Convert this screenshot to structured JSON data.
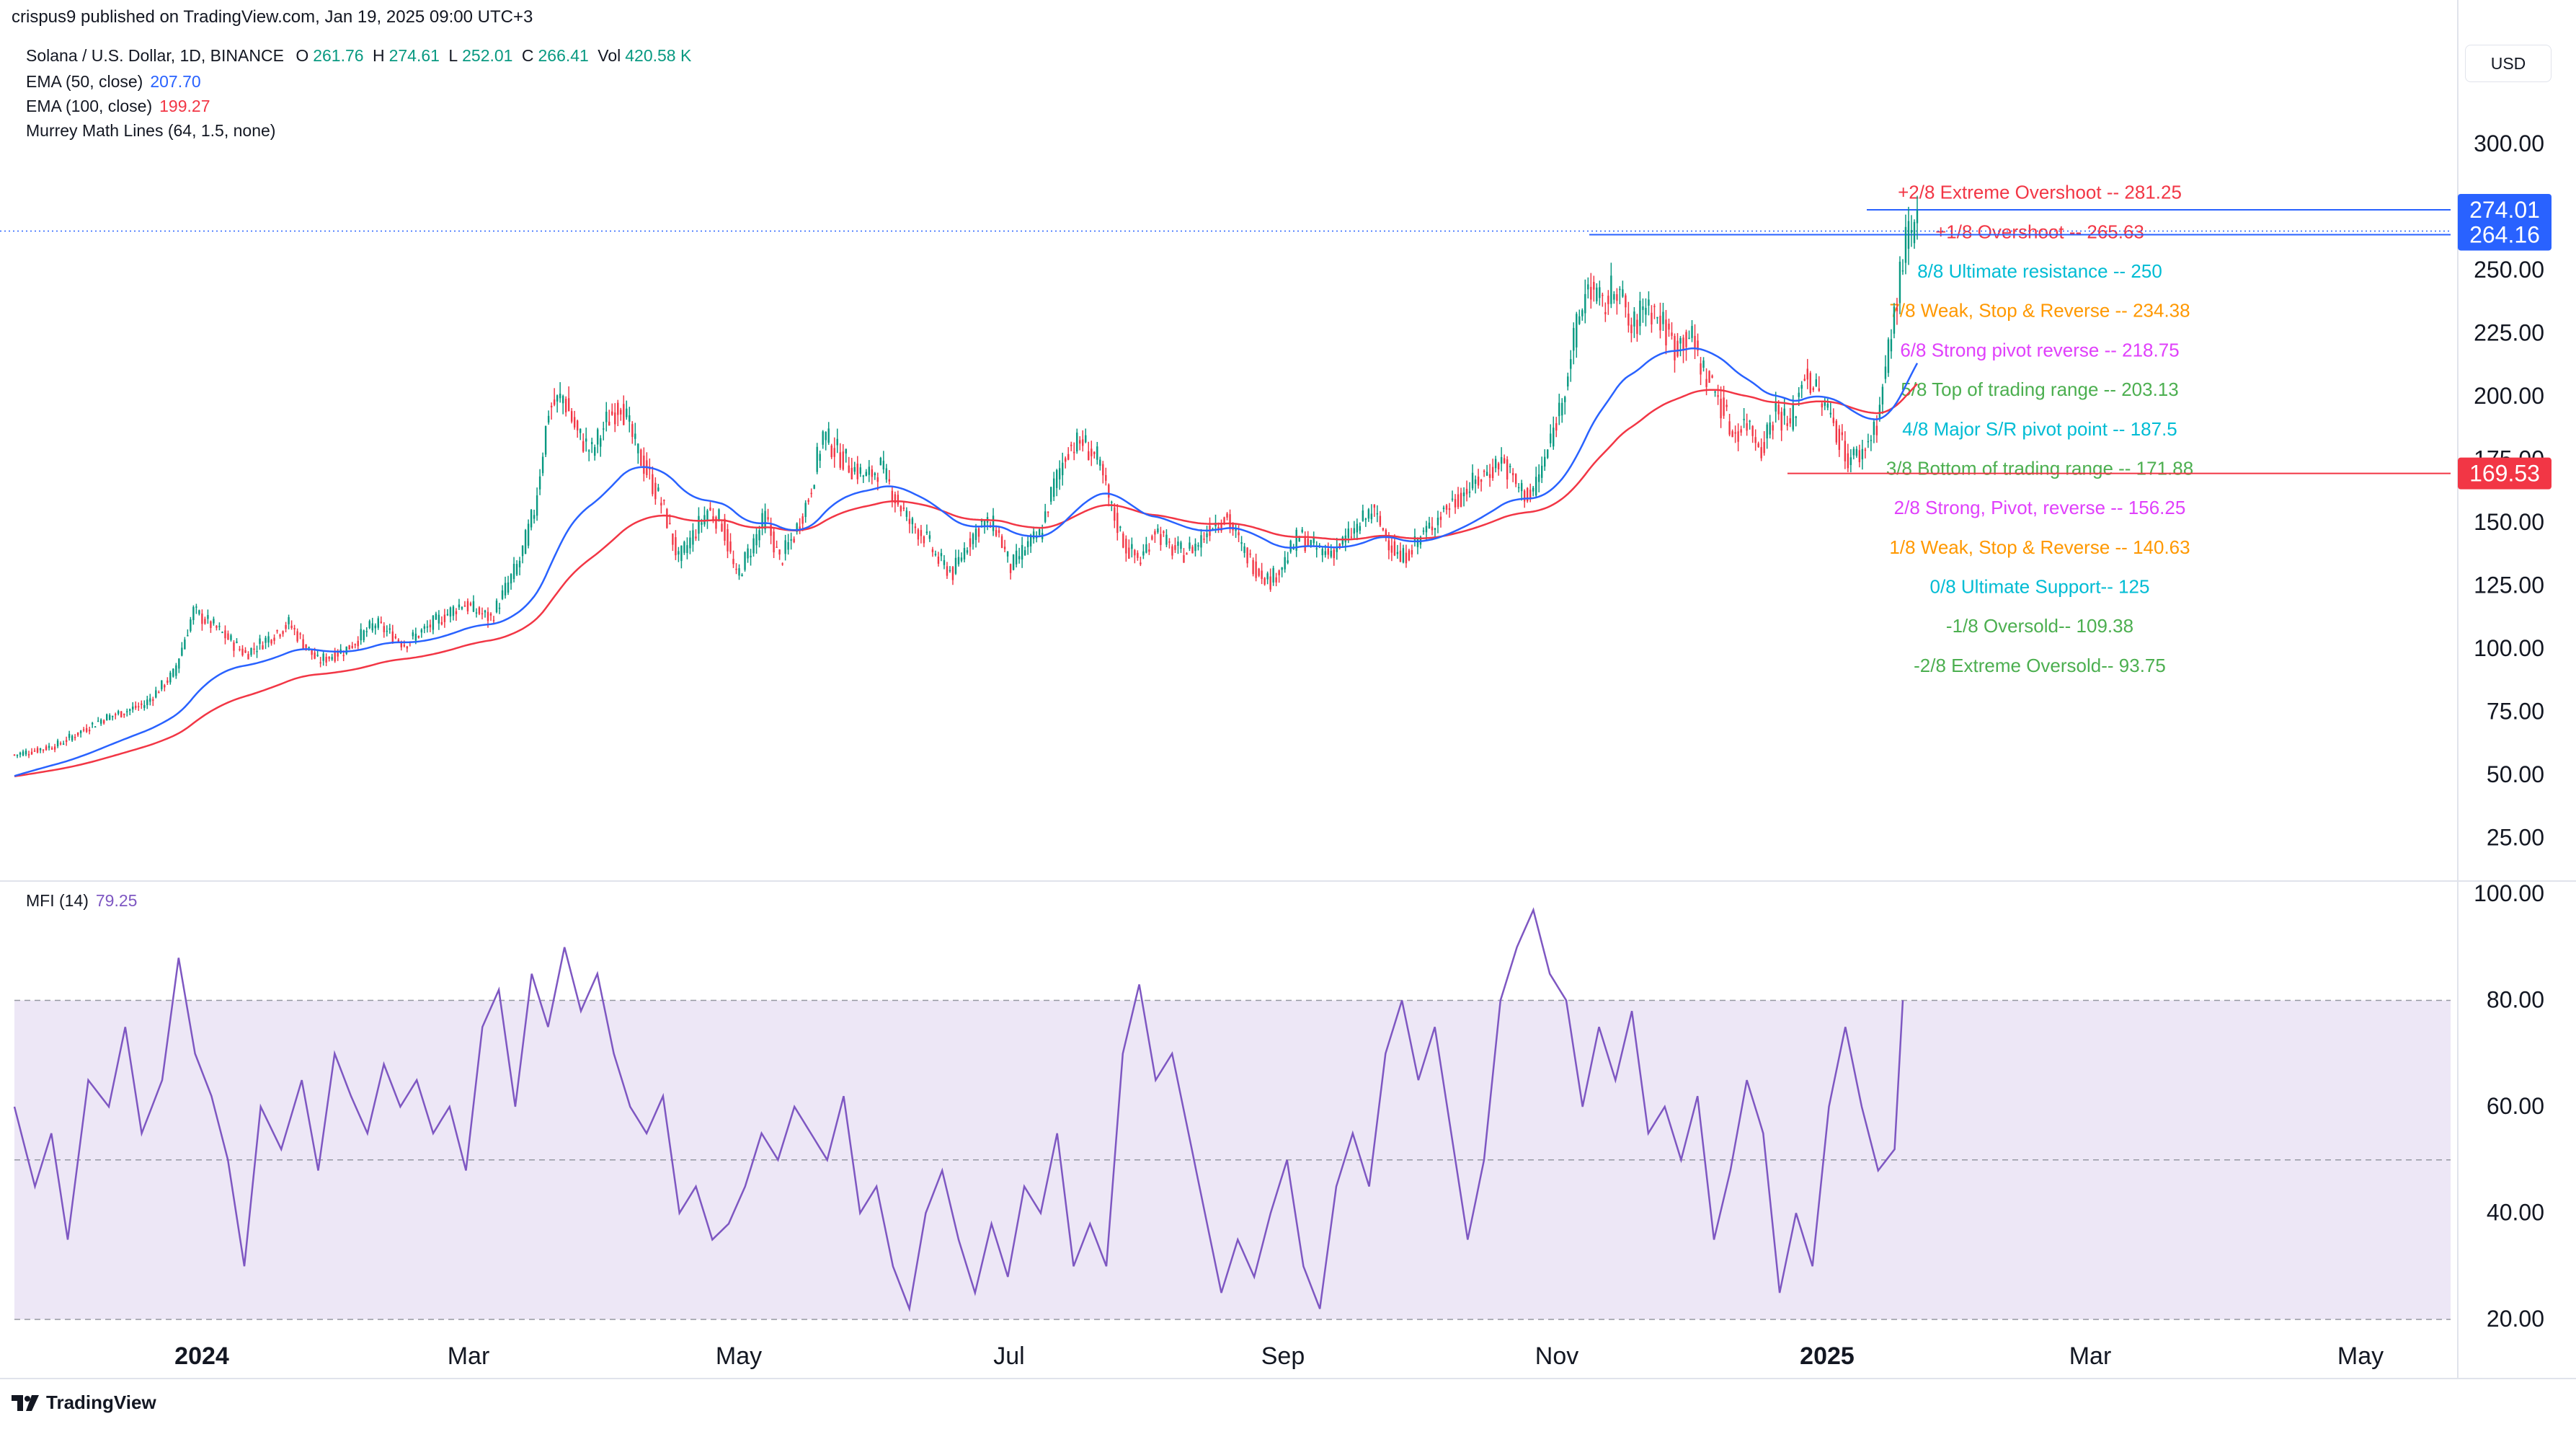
{
  "header": {
    "publisher": "crispus9 published on TradingView.com, Jan 19, 2025 09:00 UTC+3"
  },
  "legend": {
    "symbol": "Solana / U.S. Dollar, 1D, BINANCE",
    "o_label": "O",
    "o": "261.76",
    "h_label": "H",
    "h": "274.61",
    "l_label": "L",
    "l": "252.01",
    "c_label": "C",
    "c": "266.41",
    "vol_label": "Vol",
    "vol": "420.58 K",
    "ema50_label": "EMA (50, close)",
    "ema50": "207.70",
    "ema100_label": "EMA (100, close)",
    "ema100": "199.27",
    "murrey_label": "Murrey Math Lines (64, 1.5, none)",
    "mfi_label": "MFI (14)",
    "mfi": "79.25"
  },
  "currency": "USD",
  "footer": {
    "brand": "TradingView"
  },
  "colors": {
    "up": "#089981",
    "down": "#f23645",
    "ema50": "#2962ff",
    "ema100": "#f23645",
    "mfi": "#7e57c2",
    "mfi_band": "#ede7f6"
  },
  "chart_data": [
    {
      "type": "candlestick",
      "y_ticks": [
        "25.00",
        "50.00",
        "75.00",
        "100.00",
        "125.00",
        "150.00",
        "175.00",
        "200.00",
        "225.00",
        "250.00",
        "300.00"
      ],
      "ylim": [
        10,
        320
      ],
      "x_ticks": [
        "2024",
        "Mar",
        "May",
        "Jul",
        "Sep",
        "Nov",
        "2025",
        "Mar",
        "May"
      ],
      "price_labels": [
        {
          "value": 274.01,
          "text": "274.01"
        },
        {
          "value": 264.16,
          "text": "264.16"
        },
        {
          "value": 169.53,
          "text": "169.53"
        }
      ],
      "murrey_lines": [
        {
          "label": "+2/8 Extreme Overshoot --  281.25",
          "value": 281.25,
          "color": "#f23645"
        },
        {
          "label": "+1/8 Overshoot --  265.63",
          "value": 265.63,
          "color": "#f23645"
        },
        {
          "label": "8/8 Ultimate resistance --  250",
          "value": 250,
          "color": "#00bcd4"
        },
        {
          "label": "7/8 Weak, Stop & Reverse --  234.38",
          "value": 234.38,
          "color": "#ff9800"
        },
        {
          "label": "6/8 Strong pivot reverse --  218.75",
          "value": 218.75,
          "color": "#e040fb"
        },
        {
          "label": "5/8 Top of trading range --  203.13",
          "value": 203.13,
          "color": "#4caf50"
        },
        {
          "label": "4/8 Major S/R pivot point --  187.5",
          "value": 187.5,
          "color": "#00bcd4"
        },
        {
          "label": "3/8 Bottom of trading range --  171.88",
          "value": 171.88,
          "color": "#4caf50"
        },
        {
          "label": "2/8 Strong, Pivot, reverse --  156.25",
          "value": 156.25,
          "color": "#e040fb"
        },
        {
          "label": "1/8 Weak, Stop & Reverse --  140.63",
          "value": 140.63,
          "color": "#ff9800"
        },
        {
          "label": "0/8 Ultimate Support--  125",
          "value": 125,
          "color": "#00bcd4"
        },
        {
          "label": "-1/8 Oversold--  109.38",
          "value": 109.38,
          "color": "#4caf50"
        },
        {
          "label": "-2/8 Extreme Oversold--  93.75",
          "value": 93.75,
          "color": "#4caf50"
        }
      ],
      "series_anchors_close": [
        [
          0,
          58
        ],
        [
          15,
          62
        ],
        [
          30,
          72
        ],
        [
          45,
          78
        ],
        [
          55,
          90
        ],
        [
          62,
          115
        ],
        [
          70,
          108
        ],
        [
          80,
          98
        ],
        [
          95,
          110
        ],
        [
          105,
          95
        ],
        [
          115,
          100
        ],
        [
          125,
          110
        ],
        [
          135,
          102
        ],
        [
          145,
          110
        ],
        [
          155,
          118
        ],
        [
          165,
          112
        ],
        [
          175,
          135
        ],
        [
          180,
          155
        ],
        [
          185,
          195
        ],
        [
          190,
          200
        ],
        [
          195,
          185
        ],
        [
          200,
          178
        ],
        [
          205,
          190
        ],
        [
          210,
          198
        ],
        [
          215,
          180
        ],
        [
          220,
          168
        ],
        [
          225,
          155
        ],
        [
          230,
          135
        ],
        [
          235,
          145
        ],
        [
          240,
          155
        ],
        [
          245,
          150
        ],
        [
          250,
          128
        ],
        [
          255,
          140
        ],
        [
          260,
          152
        ],
        [
          265,
          135
        ],
        [
          270,
          145
        ],
        [
          275,
          160
        ],
        [
          280,
          185
        ],
        [
          285,
          178
        ],
        [
          290,
          172
        ],
        [
          295,
          168
        ],
        [
          300,
          172
        ],
        [
          305,
          160
        ],
        [
          310,
          150
        ],
        [
          315,
          145
        ],
        [
          320,
          135
        ],
        [
          325,
          130
        ],
        [
          330,
          142
        ],
        [
          335,
          150
        ],
        [
          340,
          148
        ],
        [
          345,
          132
        ],
        [
          350,
          140
        ],
        [
          355,
          145
        ],
        [
          360,
          165
        ],
        [
          365,
          180
        ],
        [
          370,
          182
        ],
        [
          375,
          175
        ],
        [
          380,
          155
        ],
        [
          385,
          140
        ],
        [
          390,
          135
        ],
        [
          395,
          148
        ],
        [
          400,
          140
        ],
        [
          405,
          138
        ],
        [
          410,
          142
        ],
        [
          415,
          150
        ],
        [
          420,
          152
        ],
        [
          425,
          140
        ],
        [
          430,
          132
        ],
        [
          435,
          127
        ],
        [
          440,
          135
        ],
        [
          445,
          145
        ],
        [
          450,
          140
        ],
        [
          455,
          138
        ],
        [
          460,
          142
        ],
        [
          465,
          148
        ],
        [
          470,
          155
        ],
        [
          475,
          145
        ],
        [
          480,
          135
        ],
        [
          485,
          142
        ],
        [
          490,
          148
        ],
        [
          495,
          155
        ],
        [
          500,
          160
        ],
        [
          505,
          165
        ],
        [
          510,
          170
        ],
        [
          515,
          175
        ],
        [
          520,
          165
        ],
        [
          525,
          160
        ],
        [
          530,
          175
        ],
        [
          535,
          195
        ],
        [
          540,
          222
        ],
        [
          545,
          245
        ],
        [
          550,
          235
        ],
        [
          555,
          245
        ],
        [
          560,
          225
        ],
        [
          565,
          238
        ],
        [
          570,
          230
        ],
        [
          575,
          220
        ],
        [
          580,
          225
        ],
        [
          585,
          210
        ],
        [
          590,
          200
        ],
        [
          595,
          185
        ],
        [
          600,
          190
        ],
        [
          605,
          180
        ],
        [
          610,
          195
        ],
        [
          615,
          188
        ],
        [
          620,
          210
        ],
        [
          625,
          200
        ],
        [
          630,
          190
        ],
        [
          635,
          175
        ],
        [
          640,
          178
        ],
        [
          645,
          190
        ],
        [
          650,
          225
        ],
        [
          655,
          262
        ],
        [
          659,
          266
        ]
      ]
    },
    {
      "type": "line",
      "name": "MFI (14)",
      "y_ticks": [
        "20.00",
        "40.00",
        "60.00",
        "80.00",
        "100.00"
      ],
      "ylim": [
        20,
        100
      ],
      "bands": [
        20,
        50,
        80
      ],
      "anchors": [
        [
          0,
          60
        ],
        [
          5,
          45
        ],
        [
          9,
          55
        ],
        [
          13,
          35
        ],
        [
          18,
          65
        ],
        [
          23,
          60
        ],
        [
          27,
          75
        ],
        [
          31,
          55
        ],
        [
          36,
          65
        ],
        [
          40,
          88
        ],
        [
          44,
          70
        ],
        [
          48,
          62
        ],
        [
          52,
          50
        ],
        [
          56,
          30
        ],
        [
          60,
          60
        ],
        [
          65,
          52
        ],
        [
          70,
          65
        ],
        [
          74,
          48
        ],
        [
          78,
          70
        ],
        [
          82,
          62
        ],
        [
          86,
          55
        ],
        [
          90,
          68
        ],
        [
          94,
          60
        ],
        [
          98,
          65
        ],
        [
          102,
          55
        ],
        [
          106,
          60
        ],
        [
          110,
          48
        ],
        [
          114,
          75
        ],
        [
          118,
          82
        ],
        [
          122,
          60
        ],
        [
          126,
          85
        ],
        [
          130,
          75
        ],
        [
          134,
          90
        ],
        [
          138,
          78
        ],
        [
          142,
          85
        ],
        [
          146,
          70
        ],
        [
          150,
          60
        ],
        [
          154,
          55
        ],
        [
          158,
          62
        ],
        [
          162,
          40
        ],
        [
          166,
          45
        ],
        [
          170,
          35
        ],
        [
          174,
          38
        ],
        [
          178,
          45
        ],
        [
          182,
          55
        ],
        [
          186,
          50
        ],
        [
          190,
          60
        ],
        [
          194,
          55
        ],
        [
          198,
          50
        ],
        [
          202,
          62
        ],
        [
          206,
          40
        ],
        [
          210,
          45
        ],
        [
          214,
          30
        ],
        [
          218,
          22
        ],
        [
          222,
          40
        ],
        [
          226,
          48
        ],
        [
          230,
          35
        ],
        [
          234,
          25
        ],
        [
          238,
          38
        ],
        [
          242,
          28
        ],
        [
          246,
          45
        ],
        [
          250,
          40
        ],
        [
          254,
          55
        ],
        [
          258,
          30
        ],
        [
          262,
          38
        ],
        [
          266,
          30
        ],
        [
          270,
          70
        ],
        [
          274,
          83
        ],
        [
          278,
          65
        ],
        [
          282,
          70
        ],
        [
          286,
          55
        ],
        [
          290,
          40
        ],
        [
          294,
          25
        ],
        [
          298,
          35
        ],
        [
          302,
          28
        ],
        [
          306,
          40
        ],
        [
          310,
          50
        ],
        [
          314,
          30
        ],
        [
          318,
          22
        ],
        [
          322,
          45
        ],
        [
          326,
          55
        ],
        [
          330,
          45
        ],
        [
          334,
          70
        ],
        [
          338,
          80
        ],
        [
          342,
          65
        ],
        [
          346,
          75
        ],
        [
          350,
          55
        ],
        [
          354,
          35
        ],
        [
          358,
          50
        ],
        [
          362,
          80
        ],
        [
          366,
          90
        ],
        [
          370,
          97
        ],
        [
          374,
          85
        ],
        [
          378,
          80
        ],
        [
          382,
          60
        ],
        [
          386,
          75
        ],
        [
          390,
          65
        ],
        [
          394,
          78
        ],
        [
          398,
          55
        ],
        [
          402,
          60
        ],
        [
          406,
          50
        ],
        [
          410,
          62
        ],
        [
          414,
          35
        ],
        [
          418,
          48
        ],
        [
          422,
          65
        ],
        [
          426,
          55
        ],
        [
          430,
          25
        ],
        [
          434,
          40
        ],
        [
          438,
          30
        ],
        [
          442,
          60
        ],
        [
          446,
          75
        ],
        [
          450,
          60
        ],
        [
          454,
          48
        ],
        [
          458,
          52
        ],
        [
          460,
          80
        ]
      ]
    }
  ]
}
